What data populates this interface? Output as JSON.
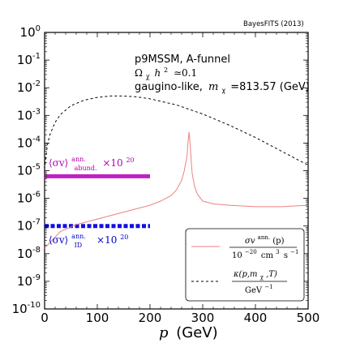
{
  "chart_data": {
    "type": "line",
    "credit": "BayesFITS (2013)",
    "xlabel_var": "p",
    "xlabel_unit": "(GeV)",
    "xlim": [
      0,
      500
    ],
    "ylim_log10": [
      -10,
      0
    ],
    "x_ticks": [
      "0",
      "100",
      "200",
      "300",
      "400",
      "500"
    ],
    "y_ticks": [
      {
        "base": "10",
        "exp": "0"
      },
      {
        "base": "10",
        "exp": "-1"
      },
      {
        "base": "10",
        "exp": "-2"
      },
      {
        "base": "10",
        "exp": "-3"
      },
      {
        "base": "10",
        "exp": "-4"
      },
      {
        "base": "10",
        "exp": "-5"
      },
      {
        "base": "10",
        "exp": "-6"
      },
      {
        "base": "10",
        "exp": "-7"
      },
      {
        "base": "10",
        "exp": "-8"
      },
      {
        "base": "10",
        "exp": "-9"
      },
      {
        "base": "10",
        "exp": "-10"
      }
    ],
    "annotations": {
      "model": "p9MSSM, A-funnel",
      "relic_lhs": "Ω",
      "relic_sub": "χ",
      "relic_h": "h",
      "relic_sup": "2",
      "relic_rhs": "≃0.1",
      "gaugino_text": "gaugino-like,",
      "mass_m": "m",
      "mass_sub": "χ",
      "mass_value": "=813.57 (GeV)",
      "abund_sigma": "⟨σv⟩",
      "abund_sup": "ann.",
      "abund_sub": "abund.",
      "abund_factor": "×10",
      "abund_factor_exp": "20",
      "id_sigma": "⟨σv⟩",
      "id_sup": "ann.",
      "id_sub": "ID",
      "id_factor": "×10",
      "id_factor_exp": "20"
    },
    "colors": {
      "sigma_line": "#f08080",
      "kappa_line": "#000000",
      "abund_band": "#c020c0",
      "id_band": "#1010e0",
      "abund_text": "#b000b0",
      "id_text": "#0000cc"
    },
    "series": [
      {
        "name": "σv^{ann.}(p) / 10^{-20} cm^3 s^{-1}",
        "style": "solid",
        "x": [
          0,
          30,
          60,
          90,
          120,
          150,
          180,
          200,
          220,
          240,
          250,
          260,
          265,
          270,
          272,
          274,
          276,
          278,
          280,
          285,
          290,
          300,
          320,
          350,
          400,
          450,
          500
        ],
        "log10_y": [
          -7.8,
          -7.2,
          -6.95,
          -6.8,
          -6.65,
          -6.5,
          -6.35,
          -6.25,
          -6.1,
          -5.9,
          -5.7,
          -5.35,
          -5.0,
          -4.5,
          -4.0,
          -3.6,
          -4.0,
          -4.6,
          -5.1,
          -5.6,
          -5.85,
          -6.1,
          -6.2,
          -6.25,
          -6.3,
          -6.3,
          -6.25
        ]
      },
      {
        "name": "κ(p, m_χ, T) / GeV^{-1}",
        "style": "dashed",
        "x": [
          0,
          5,
          10,
          20,
          30,
          50,
          75,
          100,
          125,
          150,
          175,
          200,
          250,
          300,
          350,
          400,
          450,
          500
        ],
        "log10_y": [
          -4.95,
          -4.1,
          -3.7,
          -3.25,
          -2.97,
          -2.65,
          -2.45,
          -2.35,
          -2.3,
          -2.3,
          -2.33,
          -2.4,
          -2.62,
          -2.95,
          -3.35,
          -3.8,
          -4.3,
          -4.8
        ]
      }
    ],
    "bands": [
      {
        "name": "abund",
        "x": [
          0,
          200
        ],
        "log10_y": -5.2
      },
      {
        "name": "id",
        "x": [
          0,
          200
        ],
        "log10_y": -7.0
      }
    ],
    "legend": {
      "placement": "bottom-right",
      "entry1_num": "σv",
      "entry1_num_sup": "ann.",
      "entry1_num_arg": "(p)",
      "entry1_den": "10",
      "entry1_den_exp": "−20",
      "entry1_den_unit": "cm",
      "entry1_den_unit_exp": "3",
      "entry1_den_s": "s",
      "entry1_den_s_exp": "−1",
      "entry2_num": "κ(p,m",
      "entry2_num_sub": "χ",
      "entry2_num_rest": ",T)",
      "entry2_den": "GeV",
      "entry2_den_exp": "−1"
    }
  }
}
